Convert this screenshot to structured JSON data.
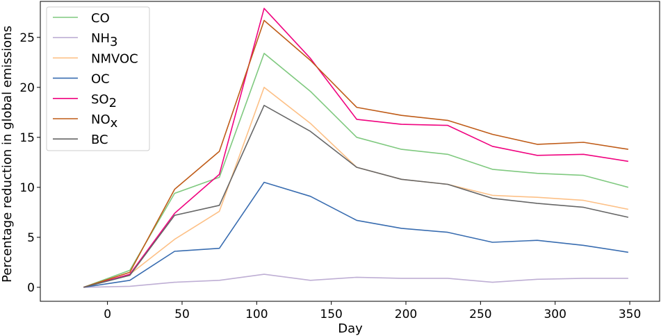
{
  "chart_data": {
    "type": "line",
    "title": "",
    "xlabel": "Day",
    "ylabel": "Percentage reduction in global emissions",
    "xlim": [
      -45,
      370
    ],
    "ylim": [
      -1.4,
      28.6
    ],
    "xticks": [
      0,
      50,
      100,
      150,
      200,
      250,
      300,
      350
    ],
    "yticks": [
      0,
      5,
      10,
      15,
      20,
      25
    ],
    "grid": false,
    "legend_position": "top-left",
    "x": [
      -16,
      15,
      45,
      75,
      105,
      136,
      167,
      197,
      228,
      258,
      288,
      319,
      349
    ],
    "series": [
      {
        "name": "CO",
        "color": "#7fc97f",
        "values": [
          0,
          1.7,
          9.4,
          11.0,
          23.4,
          19.6,
          15.0,
          13.8,
          13.3,
          11.8,
          11.4,
          11.2,
          10.0
        ]
      },
      {
        "name": "NH3",
        "base": "NH",
        "sub": "3",
        "color": "#beaed4",
        "values": [
          0,
          0.1,
          0.5,
          0.7,
          1.3,
          0.7,
          1.0,
          0.9,
          0.9,
          0.5,
          0.8,
          0.9,
          0.9
        ]
      },
      {
        "name": "NMVOC",
        "color": "#fdc086",
        "values": [
          0,
          1.3,
          4.8,
          7.6,
          20.0,
          16.4,
          12.0,
          10.8,
          10.3,
          9.2,
          9.0,
          8.7,
          7.8
        ]
      },
      {
        "name": "OC",
        "color": "#386cb0",
        "values": [
          0,
          0.7,
          3.6,
          3.9,
          10.5,
          9.1,
          6.7,
          5.9,
          5.5,
          4.5,
          4.7,
          4.2,
          3.5
        ]
      },
      {
        "name": "SO2",
        "base": "SO",
        "sub": "2",
        "color": "#f0027f",
        "values": [
          0,
          1.3,
          7.4,
          11.3,
          27.9,
          22.9,
          16.8,
          16.3,
          16.2,
          14.1,
          13.2,
          13.3,
          12.6
        ]
      },
      {
        "name": "NOx",
        "base": "NO",
        "sub": "x",
        "color": "#bf5b17",
        "values": [
          0,
          1.5,
          9.8,
          13.6,
          26.7,
          22.7,
          18.0,
          17.2,
          16.7,
          15.3,
          14.3,
          14.5,
          13.8
        ]
      },
      {
        "name": "BC",
        "color": "#666666",
        "values": [
          0,
          1.2,
          7.2,
          8.2,
          18.2,
          15.6,
          12.0,
          10.8,
          10.3,
          8.9,
          8.4,
          8.0,
          7.0
        ]
      }
    ]
  }
}
